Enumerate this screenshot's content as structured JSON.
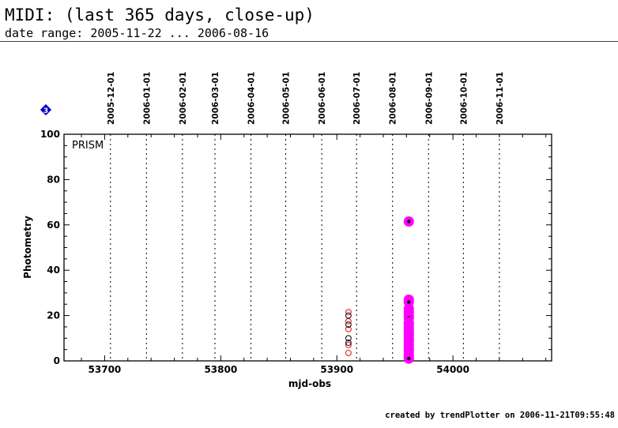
{
  "header": {
    "title": "MIDI: (last 365 days, close-up)",
    "subtitle": "date range: 2005-11-22 ... 2006-08-16"
  },
  "footer": {
    "text": "created by trendPlotter on 2006-11-21T09:55:48"
  },
  "chart_data": {
    "type": "scatter",
    "panel_label": "PRISM",
    "badge": "3",
    "xlabel": "mjd-obs",
    "ylabel": "Photometry",
    "xlim": [
      53665,
      54085
    ],
    "ylim": [
      0,
      100
    ],
    "xticks": [
      53700,
      53800,
      53900,
      54000
    ],
    "yticks": [
      0,
      20,
      40,
      60,
      80,
      100
    ],
    "month_markers": [
      {
        "label": "2005-12-01",
        "mjd": 53705
      },
      {
        "label": "2006-01-01",
        "mjd": 53736
      },
      {
        "label": "2006-02-01",
        "mjd": 53767
      },
      {
        "label": "2006-03-01",
        "mjd": 53795
      },
      {
        "label": "2006-04-01",
        "mjd": 53826
      },
      {
        "label": "2006-05-01",
        "mjd": 53856
      },
      {
        "label": "2006-06-01",
        "mjd": 53887
      },
      {
        "label": "2006-07-01",
        "mjd": 53917
      },
      {
        "label": "2006-08-01",
        "mjd": 53948
      },
      {
        "label": "2006-09-01",
        "mjd": 53979
      },
      {
        "label": "2006-10-01",
        "mjd": 54009
      },
      {
        "label": "2006-11-01",
        "mjd": 54040
      }
    ],
    "colors": {
      "open_red": "#e01010",
      "open_black": "#000000",
      "highlight": "#ff00ff",
      "badge": "#0000cc"
    },
    "series": [
      {
        "style": "open-red",
        "x": [
          53910,
          53910,
          53910,
          53910,
          53910
        ],
        "y": [
          21.5,
          17.5,
          14,
          7,
          3.5
        ]
      },
      {
        "style": "open-black",
        "x": [
          53910,
          53910,
          53910,
          53910
        ],
        "y": [
          20,
          16,
          10,
          8
        ]
      },
      {
        "style": "magenta-highlight",
        "x": [
          53962,
          53962,
          53962,
          53962,
          53962,
          53962,
          53962,
          53962,
          53962,
          53962,
          53962,
          53962,
          53962,
          53962,
          53962,
          53962,
          53962,
          53962,
          53962,
          53962,
          53962
        ],
        "y": [
          61.5,
          27,
          26,
          23,
          21.5,
          20,
          19,
          17,
          16,
          14.5,
          13,
          12,
          11,
          9.5,
          8.5,
          7,
          5.5,
          4.5,
          3,
          2,
          1
        ]
      }
    ]
  }
}
